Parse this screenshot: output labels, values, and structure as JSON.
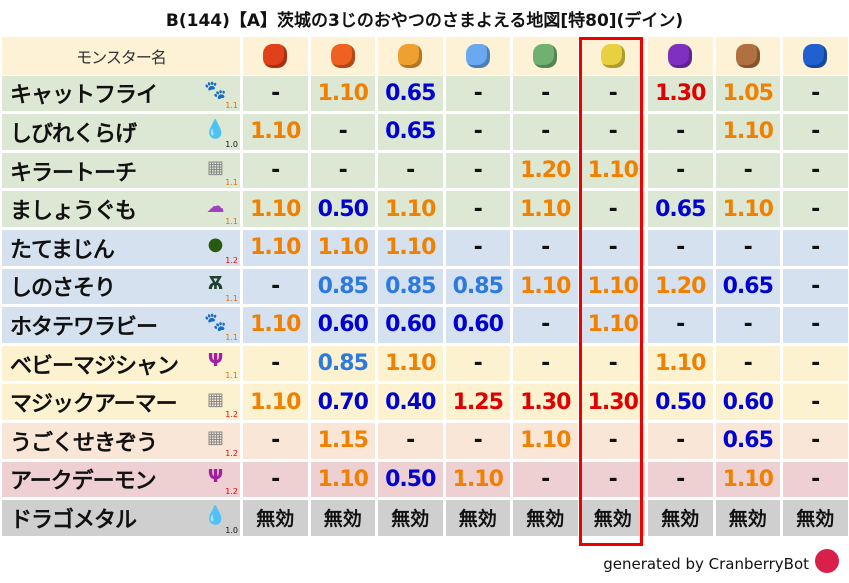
{
  "title": "B(144)【A】茨城の3じのおやつのさまよえる地図[特80](デイン)",
  "header": {
    "name_label": "モンスター名",
    "elements": [
      {
        "name": "meteor-fire-icon",
        "color": "#e0401a"
      },
      {
        "name": "flame-icon",
        "color": "#f06020"
      },
      {
        "name": "earth-cross-icon",
        "color": "#f0a030"
      },
      {
        "name": "ice-flower-icon",
        "color": "#6aa8f0"
      },
      {
        "name": "tornado-icon",
        "color": "#70b070"
      },
      {
        "name": "light-star-icon",
        "color": "#e8d040"
      },
      {
        "name": "dark-vortex-icon",
        "color": "#8030c0"
      },
      {
        "name": "rock-pyramid-icon",
        "color": "#b07040"
      },
      {
        "name": "water-wave-icon",
        "color": "#2060d0"
      }
    ]
  },
  "colors": {
    "red": "#e00000",
    "orange": "#f08000",
    "blue": "#0000d0",
    "light_blue": "#2a7ae0",
    "plain": "#111111",
    "highlight": "#e00000"
  },
  "rows": [
    {
      "name": "キャットフライ",
      "icon": "paw-icon",
      "glyph": "🐾",
      "sub": "1.1",
      "bg": "#dde8d4",
      "values": [
        "-",
        "1.10",
        "0.65",
        "-",
        "-",
        "-",
        "1.30",
        "1.05",
        "-"
      ]
    },
    {
      "name": "しびれくらげ",
      "icon": "water-drop-icon",
      "glyph": "💧",
      "sub": "1.0",
      "bg": "#dde8d4",
      "values": [
        "1.10",
        "-",
        "0.65",
        "-",
        "-",
        "-",
        "-",
        "1.10",
        "-"
      ]
    },
    {
      "name": "キラートーチ",
      "icon": "brick-icon",
      "glyph": "▦",
      "sub": "1.1",
      "bg": "#dde8d4",
      "values": [
        "-",
        "-",
        "-",
        "-",
        "1.20",
        "1.10",
        "-",
        "-",
        "-"
      ]
    },
    {
      "name": "ましょうぐも",
      "icon": "purple-cloud-icon",
      "glyph": "☁",
      "sub": "1.1",
      "bg": "#dde8d4",
      "values": [
        "1.10",
        "0.50",
        "1.10",
        "-",
        "1.10",
        "-",
        "0.65",
        "1.10",
        "-"
      ]
    },
    {
      "name": "たてまじん",
      "icon": "green-helmet-icon",
      "glyph": "●",
      "sub": "1.2",
      "bg": "#d5e1ef",
      "values": [
        "1.10",
        "1.10",
        "1.10",
        "-",
        "-",
        "-",
        "-",
        "-",
        "-"
      ]
    },
    {
      "name": "しのさそり",
      "icon": "bug-icon",
      "glyph": "Ѫ",
      "sub": "1.1",
      "bg": "#d5e1ef",
      "values": [
        "-",
        "0.85",
        "0.85",
        "0.85",
        "1.10",
        "1.10",
        "1.20",
        "0.65",
        "-"
      ]
    },
    {
      "name": "ホタテワラビー",
      "icon": "paw-icon",
      "glyph": "🐾",
      "sub": "1.1",
      "bg": "#d5e1ef",
      "values": [
        "1.10",
        "0.60",
        "0.60",
        "0.60",
        "-",
        "1.10",
        "-",
        "-",
        "-"
      ]
    },
    {
      "name": "ベビーマジシャン",
      "icon": "trident-icon",
      "glyph": "Ψ",
      "sub": "1.1",
      "bg": "#fdf2d0",
      "values": [
        "-",
        "0.85",
        "1.10",
        "-",
        "-",
        "-",
        "1.10",
        "-",
        "-"
      ]
    },
    {
      "name": "マジックアーマー",
      "icon": "brick-icon",
      "glyph": "▦",
      "sub": "1.2",
      "bg": "#fdf2d0",
      "values": [
        "1.10",
        "0.70",
        "0.40",
        "1.25",
        "1.30",
        "1.30",
        "0.50",
        "0.60",
        "-"
      ]
    },
    {
      "name": "うごくせきぞう",
      "icon": "brick-icon",
      "glyph": "▦",
      "sub": "1.2",
      "bg": "#f9e6d6",
      "values": [
        "-",
        "1.15",
        "-",
        "-",
        "1.10",
        "-",
        "-",
        "0.65",
        "-"
      ]
    },
    {
      "name": "アークデーモン",
      "icon": "trident-icon",
      "glyph": "Ψ",
      "sub": "1.2",
      "bg": "#efd0d2",
      "values": [
        "-",
        "1.10",
        "0.50",
        "1.10",
        "-",
        "-",
        "-",
        "1.10",
        "-"
      ]
    },
    {
      "name": "ドラゴメタル",
      "icon": "slime-icon",
      "glyph": "💧",
      "sub": "1.0",
      "bg": "#cfcfcf",
      "values": [
        "無効",
        "無効",
        "無効",
        "無効",
        "無効",
        "無効",
        "無効",
        "無効",
        "無効"
      ]
    }
  ],
  "footer": "generated by CranberryBot"
}
